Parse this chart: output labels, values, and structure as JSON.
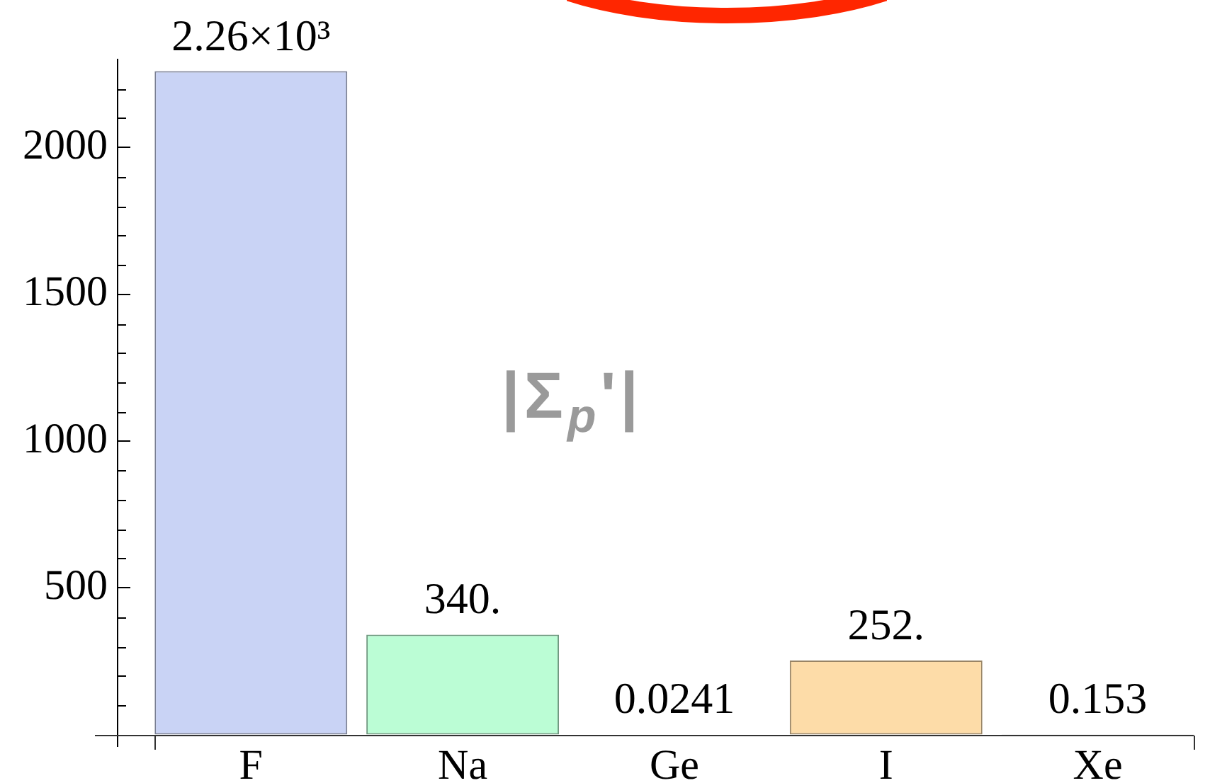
{
  "chart_data": {
    "type": "bar",
    "categories": [
      "F",
      "Na",
      "Ge",
      "I",
      "Xe"
    ],
    "values": [
      2260,
      340,
      0.0241,
      252,
      0.153
    ],
    "colors": [
      "#c9d3f5",
      "#bbfdd5",
      "#2e2e2e",
      "#fddca8",
      "#2e2e2e"
    ],
    "value_labels": [
      "2.26×10³",
      "340.",
      "0.0241",
      "252.",
      "0.153"
    ],
    "ylim": [
      -40,
      2300
    ],
    "yticks": [
      500,
      1000,
      1500,
      2000
    ],
    "grid": false,
    "legend": false,
    "annotations": [
      "|Σ$_{p}$'|"
    ]
  }
}
